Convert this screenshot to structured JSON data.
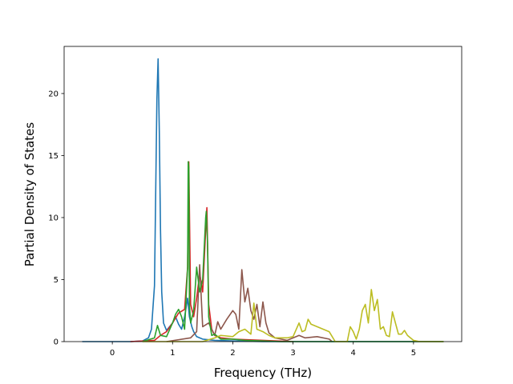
{
  "chart_data": {
    "type": "line",
    "title": "",
    "xlabel": "Frequency (THz)",
    "ylabel": "Partial Density of States",
    "xlim": [
      -0.8,
      5.8
    ],
    "ylim": [
      0,
      23.8
    ],
    "xticks": [
      0,
      1,
      2,
      3,
      4,
      5
    ],
    "yticks": [
      0,
      5,
      10,
      15,
      20
    ],
    "xtick_labels": [
      "0",
      "1",
      "2",
      "3",
      "4",
      "5"
    ],
    "ytick_labels": [
      "0",
      "5",
      "10",
      "15",
      "20"
    ],
    "grid": false,
    "legend": "none",
    "series": [
      {
        "color": "#1f77b4",
        "x": [
          -0.5,
          0.3,
          0.5,
          0.6,
          0.65,
          0.7,
          0.72,
          0.74,
          0.76,
          0.78,
          0.8,
          0.82,
          0.85,
          0.9,
          1.0,
          1.05,
          1.1,
          1.15,
          1.2,
          1.25,
          1.28,
          1.32,
          1.35,
          1.4,
          1.5,
          1.7,
          2.0,
          2.5,
          5.5
        ],
        "y": [
          0,
          0,
          0.05,
          0.3,
          1.0,
          4.5,
          12.0,
          19.5,
          22.8,
          17.0,
          9.0,
          4.0,
          1.5,
          0.9,
          1.5,
          2.0,
          1.4,
          1.0,
          2.0,
          3.5,
          2.0,
          1.2,
          0.8,
          0.4,
          0.2,
          0.1,
          0.05,
          0,
          0
        ]
      },
      {
        "color": "#d62728",
        "x": [
          0.3,
          0.7,
          0.8,
          0.9,
          1.0,
          1.1,
          1.2,
          1.25,
          1.27,
          1.3,
          1.35,
          1.4,
          1.45,
          1.5,
          1.55,
          1.57,
          1.6,
          1.65,
          1.7,
          1.8,
          2.0,
          2.5,
          3.0
        ],
        "y": [
          0,
          0.1,
          0.5,
          0.8,
          1.5,
          2.3,
          2.6,
          6.0,
          14.5,
          3.0,
          2.0,
          3.5,
          5.5,
          4.0,
          9.0,
          10.8,
          3.0,
          1.0,
          0.5,
          0.3,
          0.2,
          0.1,
          0
        ]
      },
      {
        "color": "#8c564b",
        "x": [
          0.9,
          1.3,
          1.4,
          1.45,
          1.5,
          1.6,
          1.7,
          1.75,
          1.8,
          1.9,
          2.0,
          2.05,
          2.1,
          2.15,
          2.2,
          2.25,
          2.3,
          2.35,
          2.4,
          2.45,
          2.5,
          2.55,
          2.6,
          2.7,
          2.8,
          2.9,
          3.0,
          3.1,
          3.2,
          3.4,
          3.6,
          3.65
        ],
        "y": [
          0,
          0.3,
          0.8,
          6.2,
          1.2,
          1.5,
          0.5,
          1.6,
          1.0,
          1.8,
          2.5,
          2.2,
          1.0,
          5.8,
          3.2,
          4.3,
          2.5,
          1.8,
          3.0,
          1.2,
          3.2,
          1.5,
          0.7,
          0.3,
          0.2,
          0.1,
          0.3,
          0.5,
          0.3,
          0.4,
          0.2,
          0
        ]
      },
      {
        "color": "#2ca02c",
        "x": [
          0.5,
          0.7,
          0.75,
          0.8,
          0.9,
          1.0,
          1.05,
          1.1,
          1.15,
          1.2,
          1.25,
          1.26,
          1.27,
          1.28,
          1.3,
          1.35,
          1.4,
          1.45,
          1.5,
          1.55,
          1.56,
          1.58,
          1.6,
          1.65,
          1.7,
          1.8,
          2.0,
          2.2,
          2.5,
          2.8,
          3.0,
          5.5
        ],
        "y": [
          0,
          0.3,
          1.3,
          0.5,
          0.4,
          1.5,
          2.2,
          2.6,
          2.0,
          1.0,
          6.0,
          14.5,
          14.0,
          3.0,
          1.5,
          2.5,
          6.0,
          4.0,
          5.0,
          10.0,
          10.5,
          8.0,
          2.0,
          0.5,
          0.6,
          0.2,
          0.2,
          0.1,
          0.05,
          0,
          0,
          0
        ]
      },
      {
        "color": "#bcbd22",
        "x": [
          0.5,
          1.5,
          1.7,
          1.8,
          2.0,
          2.1,
          2.2,
          2.3,
          2.35,
          2.4,
          2.5,
          2.6,
          2.7,
          2.8,
          2.9,
          3.0,
          3.1,
          3.15,
          3.2,
          3.25,
          3.3,
          3.4,
          3.5,
          3.6,
          3.7,
          3.8,
          3.9,
          3.95,
          4.0,
          4.05,
          4.1,
          4.15,
          4.2,
          4.25,
          4.3,
          4.35,
          4.4,
          4.45,
          4.5,
          4.55,
          4.6,
          4.65,
          4.7,
          4.75,
          4.8,
          4.85,
          4.9,
          4.95,
          5.0,
          5.1,
          5.5
        ],
        "y": [
          0,
          0,
          0.3,
          0.5,
          0.4,
          0.8,
          1.0,
          0.6,
          3.1,
          1.0,
          0.8,
          0.5,
          0.3,
          0.3,
          0.3,
          0.4,
          1.5,
          0.8,
          0.9,
          1.8,
          1.4,
          1.2,
          1.0,
          0.8,
          0,
          0,
          0,
          1.2,
          0.8,
          0.2,
          1.0,
          2.5,
          3.0,
          1.5,
          4.2,
          2.5,
          3.4,
          1.0,
          1.2,
          0.5,
          0.4,
          2.4,
          1.5,
          0.6,
          0.6,
          0.9,
          0.5,
          0.3,
          0.1,
          0,
          0
        ]
      }
    ]
  }
}
